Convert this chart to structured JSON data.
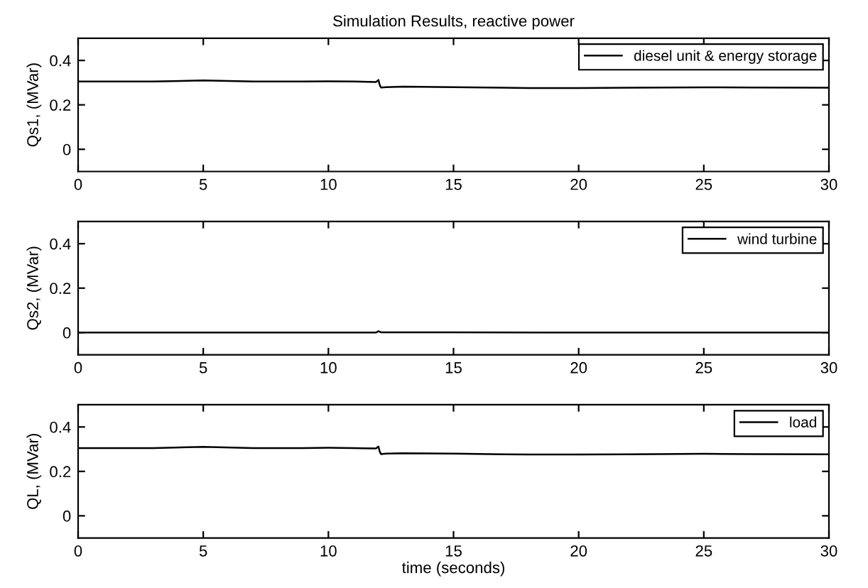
{
  "chart_data": [
    {
      "type": "line",
      "title": "Simulation Results, reactive power",
      "ylabel": "Qs1, (MVar)",
      "xlim": [
        0,
        30
      ],
      "xticks": [
        0,
        5,
        10,
        15,
        20,
        25,
        30
      ],
      "ylim": [
        -0.1,
        0.5
      ],
      "yticks": [
        0,
        0.2,
        0.4
      ],
      "legend": "top right",
      "grid": false,
      "series": [
        {
          "name": "diesel unit & energy storage",
          "color": "#000000",
          "x": [
            0,
            2,
            3,
            5,
            7,
            9,
            10,
            11,
            11.9,
            12.0,
            12.05,
            12.1,
            12.3,
            13,
            15,
            17,
            18,
            20,
            22,
            25,
            27,
            30
          ],
          "values": [
            0.305,
            0.305,
            0.305,
            0.31,
            0.305,
            0.305,
            0.306,
            0.305,
            0.303,
            0.312,
            0.29,
            0.278,
            0.28,
            0.282,
            0.28,
            0.277,
            0.276,
            0.276,
            0.277,
            0.279,
            0.278,
            0.277
          ]
        }
      ]
    },
    {
      "type": "line",
      "ylabel": "Qs2, (MVar)",
      "xlim": [
        0,
        30
      ],
      "xticks": [
        0,
        5,
        10,
        15,
        20,
        25,
        30
      ],
      "ylim": [
        -0.1,
        0.5
      ],
      "yticks": [
        0,
        0.2,
        0.4
      ],
      "legend": "top right",
      "grid": false,
      "series": [
        {
          "name": "wind turbine",
          "color": "#000000",
          "x": [
            0,
            5,
            10,
            11.9,
            12.0,
            12.1,
            15,
            20,
            25,
            30
          ],
          "values": [
            0,
            0,
            0,
            0,
            0.006,
            0.001,
            0.001,
            0,
            0,
            0
          ]
        }
      ]
    },
    {
      "type": "line",
      "ylabel": "QL, (MVar)",
      "xlabel": "time (seconds)",
      "xlim": [
        0,
        30
      ],
      "xticks": [
        0,
        5,
        10,
        15,
        20,
        25,
        30
      ],
      "ylim": [
        -0.1,
        0.5
      ],
      "yticks": [
        0,
        0.2,
        0.4
      ],
      "legend": "top right",
      "grid": false,
      "series": [
        {
          "name": "load",
          "color": "#000000",
          "x": [
            0,
            2,
            3,
            5,
            7,
            9,
            10,
            11,
            11.9,
            12.0,
            12.05,
            12.1,
            12.3,
            13,
            15,
            17,
            18,
            20,
            22,
            25,
            27,
            30
          ],
          "values": [
            0.305,
            0.305,
            0.305,
            0.31,
            0.305,
            0.305,
            0.306,
            0.305,
            0.303,
            0.312,
            0.29,
            0.278,
            0.28,
            0.282,
            0.28,
            0.277,
            0.276,
            0.276,
            0.277,
            0.279,
            0.278,
            0.277
          ]
        }
      ]
    }
  ]
}
